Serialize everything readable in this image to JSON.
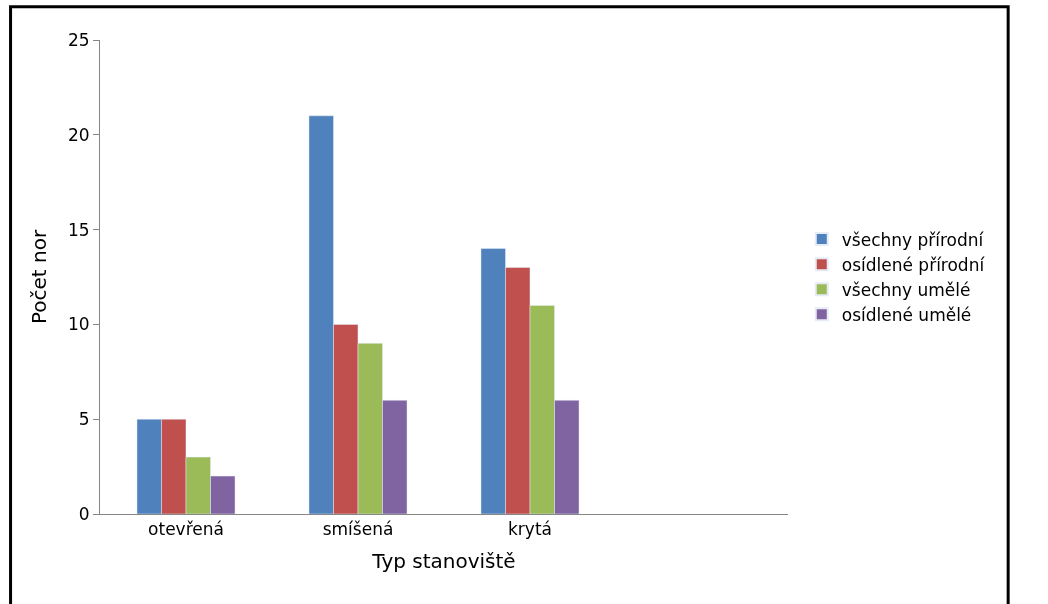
{
  "chart_data": {
    "type": "bar",
    "xlabel": "Typ stanoviště",
    "ylabel": "Počet nor",
    "categories": [
      "otevřená",
      "smíšená",
      "krytá",
      null
    ],
    "series": [
      {
        "name": "všechny přírodní",
        "color": "#4f81bd",
        "values": [
          5,
          21,
          14,
          null
        ]
      },
      {
        "name": "osídlené přírodní",
        "color": "#c0504d",
        "values": [
          5,
          10,
          13,
          null
        ]
      },
      {
        "name": "všechny umělé",
        "color": "#9bbb59",
        "values": [
          3,
          9,
          11,
          null
        ]
      },
      {
        "name": "osídlené umělé",
        "color": "#8064a2",
        "values": [
          2,
          6,
          6,
          null
        ]
      }
    ],
    "ylim": [
      0,
      25
    ],
    "yticks": [
      0,
      5,
      10,
      15,
      20,
      25
    ],
    "legend": "right"
  }
}
